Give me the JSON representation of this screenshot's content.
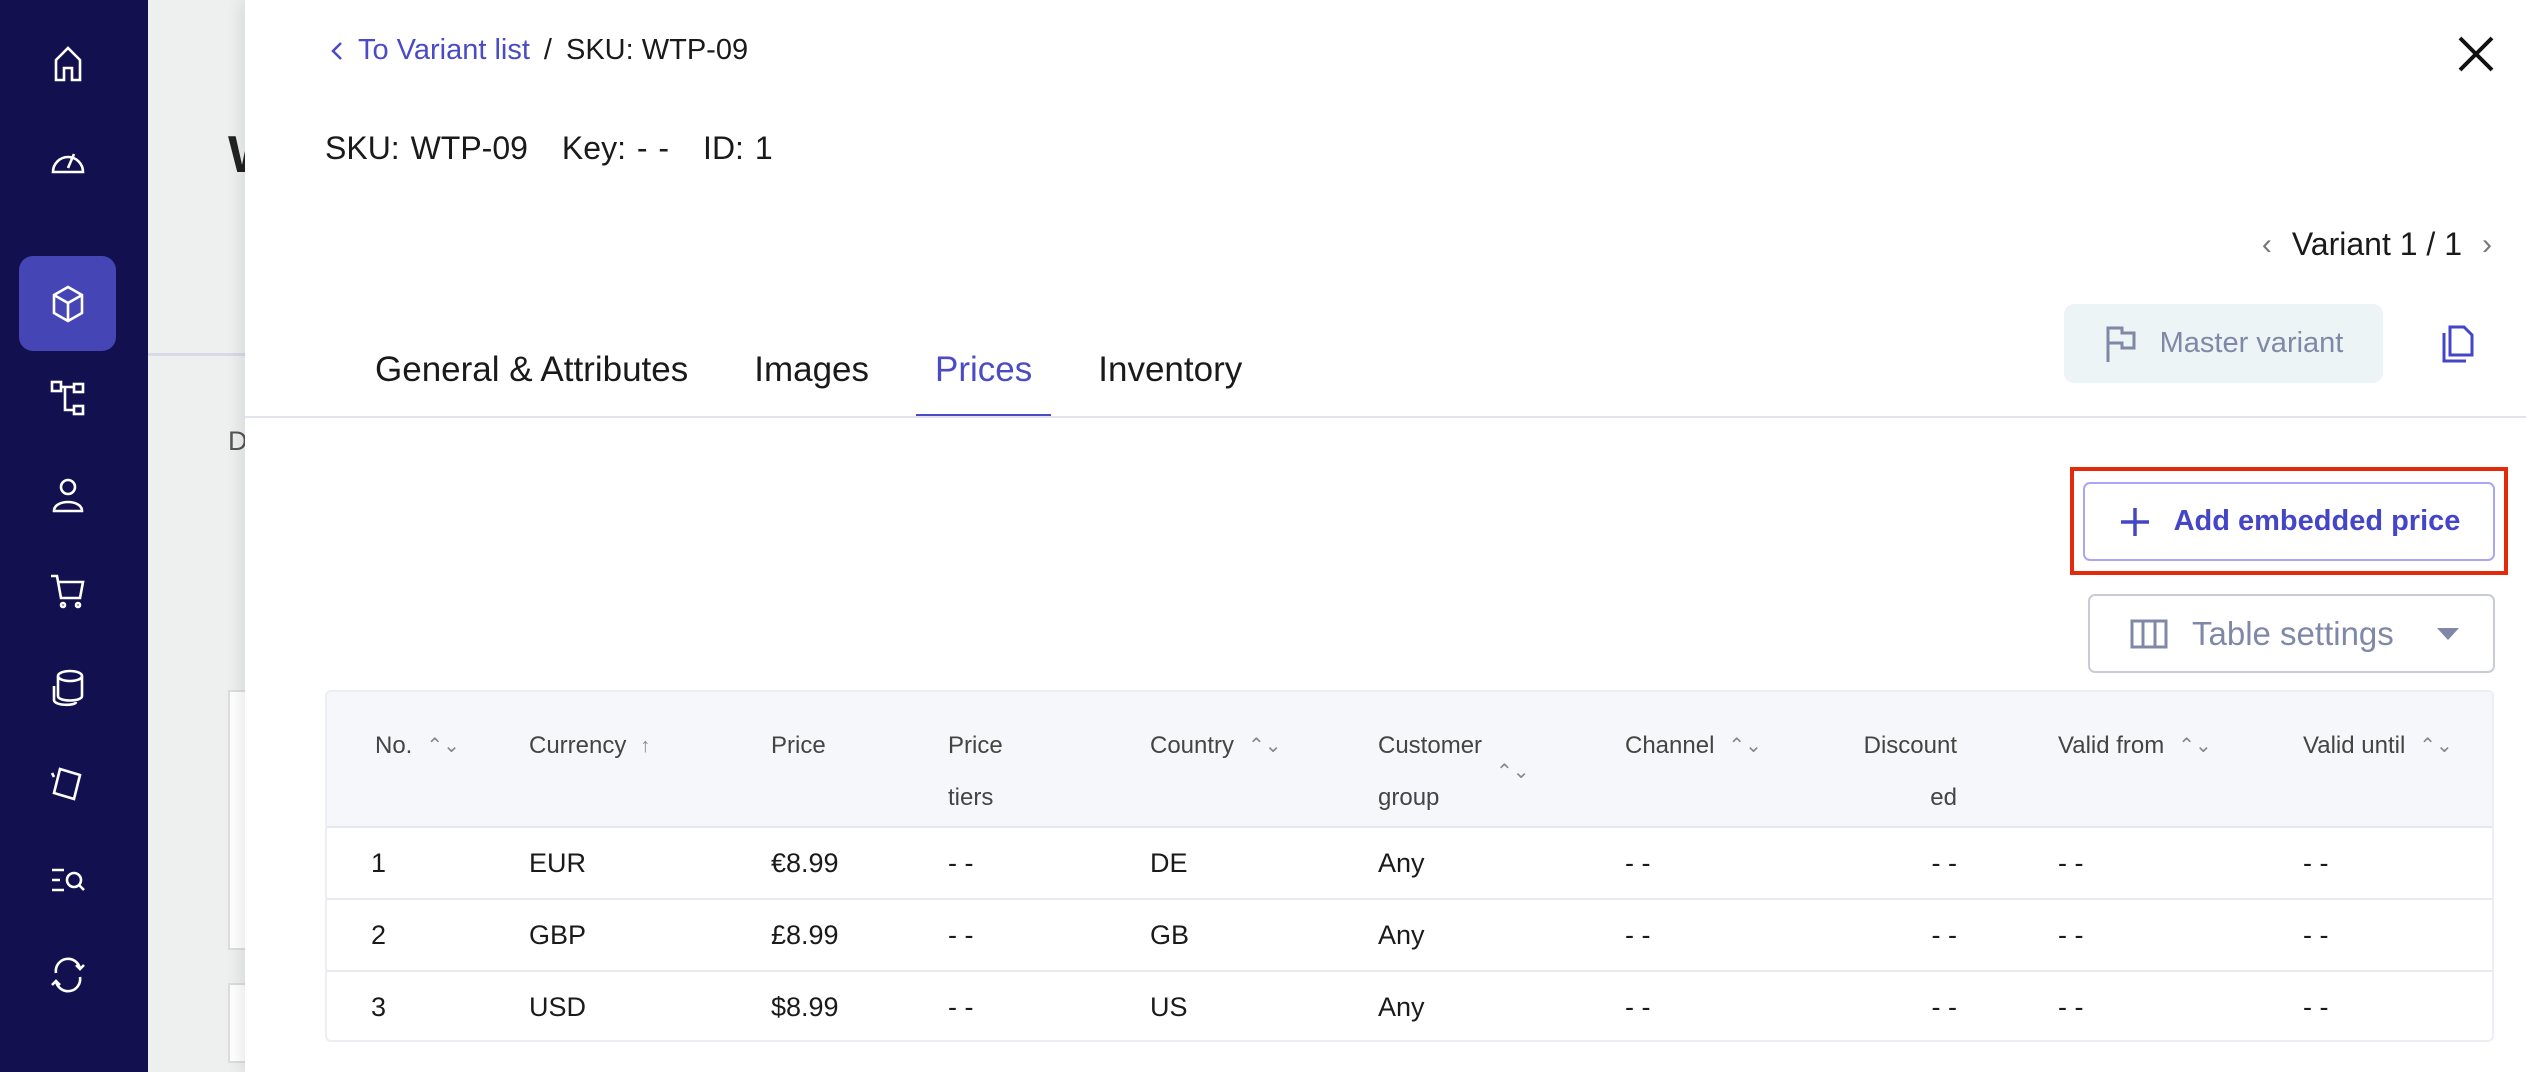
{
  "sidebar": {
    "items": [
      {
        "icon": "home-icon"
      },
      {
        "icon": "dashboard-gauge-icon"
      },
      {
        "icon": "cube-icon",
        "active": true
      },
      {
        "icon": "category-tree-icon"
      },
      {
        "icon": "user-icon"
      },
      {
        "icon": "cart-icon"
      },
      {
        "icon": "coins-icon"
      },
      {
        "icon": "discount-tag-icon"
      },
      {
        "icon": "search-list-icon"
      },
      {
        "icon": "sync-icon"
      }
    ]
  },
  "background": {
    "title_initial": "W",
    "label_initial": "D"
  },
  "breadcrumb": {
    "back_label": "To Variant list",
    "separator": "/",
    "current": "SKU: WTP-09"
  },
  "header": {
    "sku": "SKU: WTP-09",
    "key": "Key: - -",
    "id": "ID: 1"
  },
  "variant_nav": {
    "label": "Variant 1 / 1"
  },
  "master_variant_label": "Master variant",
  "tabs": [
    {
      "label": "General & Attributes"
    },
    {
      "label": "Images"
    },
    {
      "label": "Prices",
      "active": true
    },
    {
      "label": "Inventory"
    }
  ],
  "add_price_label": "Add embedded price",
  "table_settings_label": "Table settings",
  "accent": "#4b4bc6",
  "highlight_color": "#e32b0b",
  "table": {
    "columns": [
      {
        "l1": "No.",
        "sort": "⌃⌄"
      },
      {
        "l1": "Currency",
        "sort": "↑"
      },
      {
        "l1": "Price"
      },
      {
        "l1": "Price",
        "l2": "tiers"
      },
      {
        "l1": "Country",
        "sort": "⌃⌄"
      },
      {
        "l1": "Customer",
        "l2": "group",
        "sort": "⌃⌄"
      },
      {
        "l1": "Channel",
        "sort": "⌃⌄"
      },
      {
        "l1": "Discount",
        "l2": "ed"
      },
      {
        "l1": "Valid from",
        "sort": "⌃⌄"
      },
      {
        "l1": "Valid until",
        "sort": "⌃⌄"
      }
    ],
    "rows": [
      [
        "1",
        "EUR",
        "€8.99",
        "- -",
        "DE",
        "Any",
        "- -",
        "- -",
        "- -",
        "- -"
      ],
      [
        "2",
        "GBP",
        "£8.99",
        "- -",
        "GB",
        "Any",
        "- -",
        "- -",
        "- -",
        "- -"
      ],
      [
        "3",
        "USD",
        "$8.99",
        "- -",
        "US",
        "Any",
        "- -",
        "- -",
        "- -",
        "- -"
      ]
    ]
  }
}
